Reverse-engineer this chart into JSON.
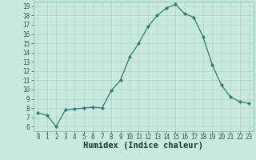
{
  "x": [
    0,
    1,
    2,
    3,
    4,
    5,
    6,
    7,
    8,
    9,
    10,
    11,
    12,
    13,
    14,
    15,
    16,
    17,
    18,
    19,
    20,
    21,
    22,
    23
  ],
  "y": [
    7.5,
    7.2,
    6.0,
    7.8,
    7.9,
    8.0,
    8.1,
    8.0,
    9.9,
    11.0,
    13.5,
    15.0,
    16.8,
    18.0,
    18.8,
    19.2,
    18.2,
    17.8,
    15.7,
    12.7,
    10.5,
    9.2,
    8.7,
    8.5
  ],
  "line_color": "#2d7d6e",
  "marker": "D",
  "marker_size": 2.0,
  "bg_color": "#c8e8e0",
  "grid_color": "#afd4cc",
  "xlabel": "Humidex (Indice chaleur)",
  "ylim": [
    5.5,
    19.5
  ],
  "xlim": [
    -0.5,
    23.5
  ],
  "yticks": [
    6,
    7,
    8,
    9,
    10,
    11,
    12,
    13,
    14,
    15,
    16,
    17,
    18,
    19
  ],
  "xticks": [
    0,
    1,
    2,
    3,
    4,
    5,
    6,
    7,
    8,
    9,
    10,
    11,
    12,
    13,
    14,
    15,
    16,
    17,
    18,
    19,
    20,
    21,
    22,
    23
  ],
  "tick_fontsize": 5.5,
  "xlabel_fontsize": 7.5,
  "line_width": 0.9
}
